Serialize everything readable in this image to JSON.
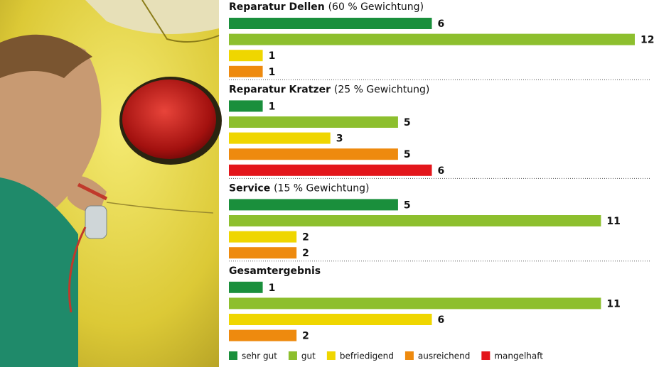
{
  "legend": [
    {
      "label": "sehr gut",
      "color": "#1a8f3c"
    },
    {
      "label": "gut",
      "color": "#8dbf2e"
    },
    {
      "label": "befriedigend",
      "color": "#efd600"
    },
    {
      "label": "ausreichend",
      "color": "#ee8a0e"
    },
    {
      "label": "mangelhaft",
      "color": "#e3161b"
    }
  ],
  "chart_data": [
    {
      "type": "bar",
      "title": "Reparatur Dellen",
      "subtitle": "(60 % Gewichtung)",
      "values": [
        6,
        12,
        1,
        1
      ]
    },
    {
      "type": "bar",
      "title": "Reparatur Kratzer",
      "subtitle": "(25 % Gewichtung)",
      "values": [
        1,
        5,
        3,
        5,
        6
      ]
    },
    {
      "type": "bar",
      "title": "Service",
      "subtitle": "(15 % Gewichtung)",
      "values": [
        5,
        11,
        2,
        2
      ]
    },
    {
      "type": "bar",
      "title": "Gesamtergebnis",
      "values": [
        1,
        11,
        6,
        2
      ]
    }
  ]
}
